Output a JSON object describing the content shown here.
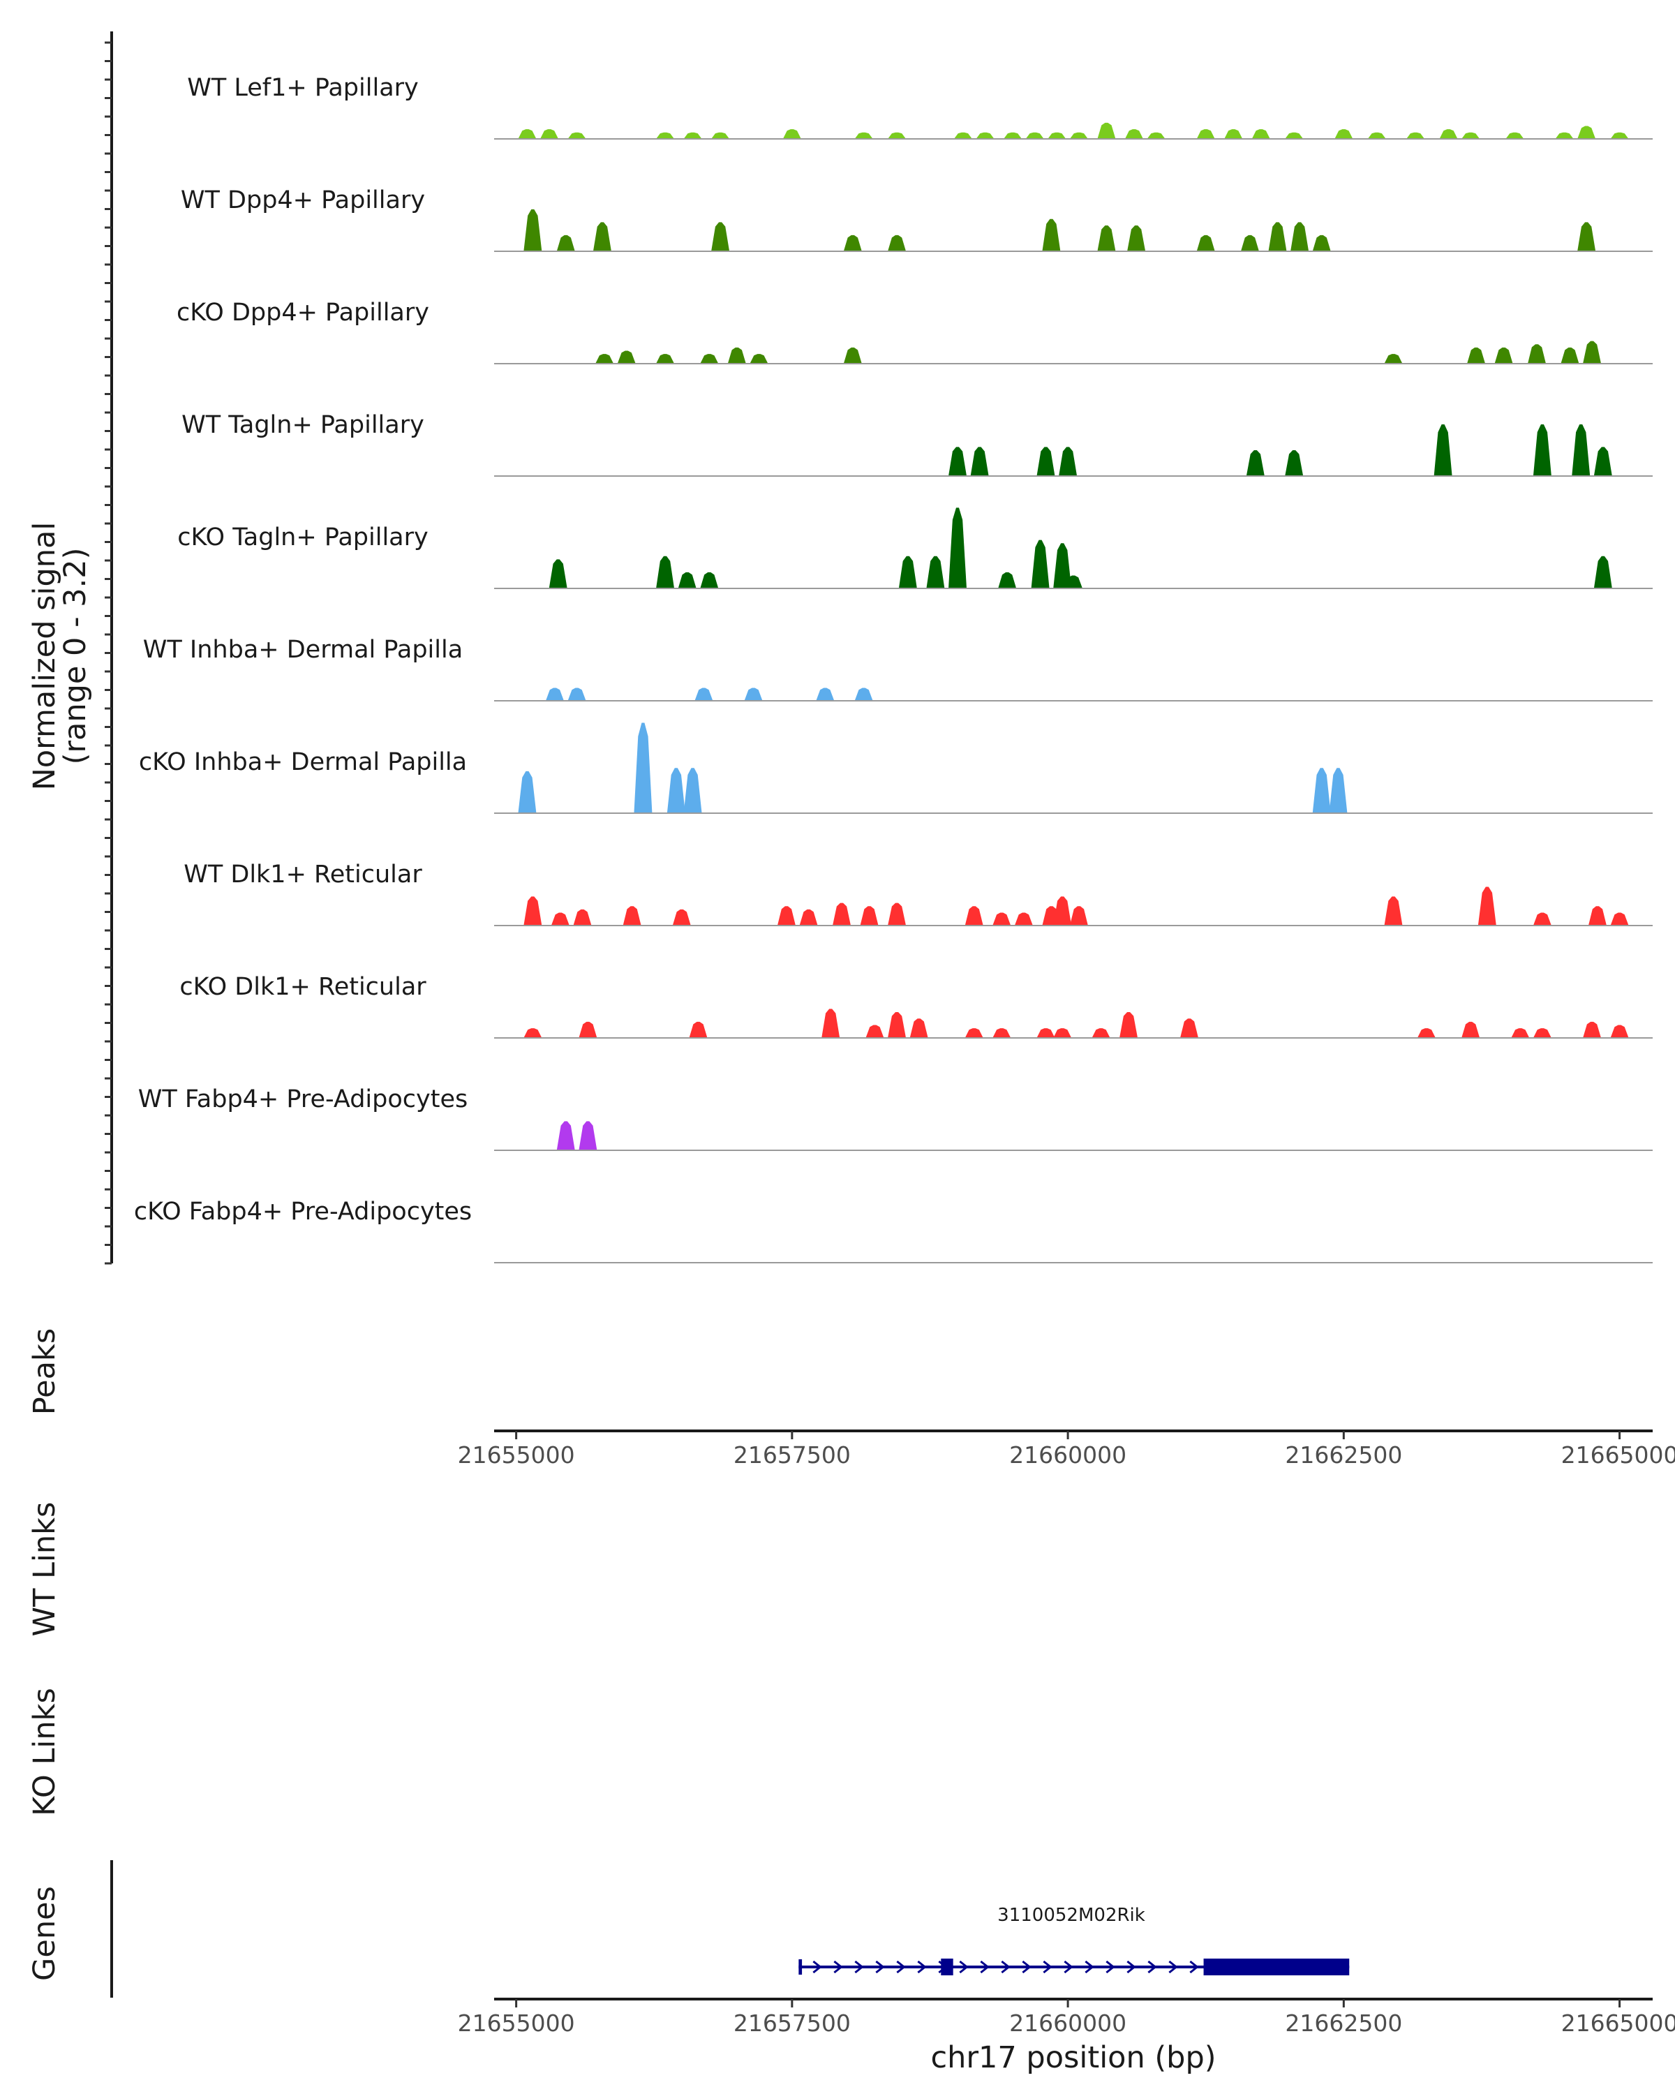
{
  "chart_data": {
    "type": "coverage",
    "chromosome": "chr17",
    "xlim": [
      21654800,
      21665300
    ],
    "signal_axis_label": "Normalized signal",
    "signal_axis_range": "(range 0 - 3.2)",
    "ylim": [
      0,
      3.2
    ],
    "colors": {
      "papillary_light": "#7ACC1E",
      "papillary_mid": "#3F8700",
      "papillary_dark": "#006400",
      "dermal_papilla": "#5DADEC",
      "reticular": "#FF3030",
      "adipocyte": "#B23AEE",
      "gene": "#00008B",
      "baseline": "#9a9a9a"
    },
    "tracks": [
      {
        "label": "WT Lef1+ Papillary",
        "color": "#7ACC1E",
        "peaks": [
          [
            21655100,
            0.3
          ],
          [
            21655300,
            0.3
          ],
          [
            21655550,
            0.2
          ],
          [
            21656350,
            0.2
          ],
          [
            21656600,
            0.2
          ],
          [
            21656850,
            0.2
          ],
          [
            21657500,
            0.3
          ],
          [
            21658150,
            0.2
          ],
          [
            21658450,
            0.2
          ],
          [
            21659050,
            0.2
          ],
          [
            21659250,
            0.2
          ],
          [
            21659500,
            0.2
          ],
          [
            21659700,
            0.2
          ],
          [
            21659900,
            0.2
          ],
          [
            21660100,
            0.2
          ],
          [
            21660350,
            0.5
          ],
          [
            21660600,
            0.3
          ],
          [
            21660800,
            0.2
          ],
          [
            21661250,
            0.3
          ],
          [
            21661500,
            0.3
          ],
          [
            21661750,
            0.3
          ],
          [
            21662050,
            0.2
          ],
          [
            21662500,
            0.3
          ],
          [
            21662800,
            0.2
          ],
          [
            21663150,
            0.2
          ],
          [
            21663450,
            0.3
          ],
          [
            21663650,
            0.2
          ],
          [
            21664050,
            0.2
          ],
          [
            21664500,
            0.2
          ],
          [
            21664700,
            0.4
          ],
          [
            21665000,
            0.2
          ]
        ]
      },
      {
        "label": "WT Dpp4+ Papillary",
        "color": "#3F8700",
        "peaks": [
          [
            21655150,
            1.3
          ],
          [
            21655450,
            0.5
          ],
          [
            21655780,
            0.9
          ],
          [
            21656850,
            0.9
          ],
          [
            21658050,
            0.5
          ],
          [
            21658450,
            0.5
          ],
          [
            21659850,
            1.0
          ],
          [
            21660350,
            0.8
          ],
          [
            21660620,
            0.8
          ],
          [
            21661250,
            0.5
          ],
          [
            21661650,
            0.5
          ],
          [
            21661900,
            0.9
          ],
          [
            21662100,
            0.9
          ],
          [
            21662300,
            0.5
          ],
          [
            21664700,
            0.9
          ]
        ]
      },
      {
        "label": "cKO Dpp4+ Papillary",
        "color": "#3F8700",
        "peaks": [
          [
            21655800,
            0.3
          ],
          [
            21656000,
            0.4
          ],
          [
            21656350,
            0.3
          ],
          [
            21656750,
            0.3
          ],
          [
            21657000,
            0.5
          ],
          [
            21657200,
            0.3
          ],
          [
            21658050,
            0.5
          ],
          [
            21662950,
            0.3
          ],
          [
            21663700,
            0.5
          ],
          [
            21663950,
            0.5
          ],
          [
            21664250,
            0.6
          ],
          [
            21664550,
            0.5
          ],
          [
            21664750,
            0.7
          ]
        ]
      },
      {
        "label": "WT Tagln+ Papillary",
        "color": "#006400",
        "peaks": [
          [
            21659000,
            0.9
          ],
          [
            21659200,
            0.9
          ],
          [
            21659800,
            0.9
          ],
          [
            21660000,
            0.9
          ],
          [
            21661700,
            0.8
          ],
          [
            21662050,
            0.8
          ],
          [
            21663400,
            1.6
          ],
          [
            21664300,
            1.6
          ],
          [
            21664650,
            1.6
          ],
          [
            21664850,
            0.9
          ]
        ]
      },
      {
        "label": "cKO Tagln+ Papillary",
        "color": "#006400",
        "peaks": [
          [
            21655380,
            0.9
          ],
          [
            21656350,
            1.0
          ],
          [
            21656550,
            0.5
          ],
          [
            21656750,
            0.5
          ],
          [
            21658550,
            1.0
          ],
          [
            21658800,
            1.0
          ],
          [
            21659000,
            2.5
          ],
          [
            21659450,
            0.5
          ],
          [
            21659750,
            1.5
          ],
          [
            21659950,
            1.4
          ],
          [
            21660050,
            0.4
          ],
          [
            21664850,
            1.0
          ]
        ]
      },
      {
        "label": "WT Inhba+ Dermal Papilla",
        "color": "#5DADEC",
        "peaks": [
          [
            21655350,
            0.4
          ],
          [
            21655550,
            0.4
          ],
          [
            21656700,
            0.4
          ],
          [
            21657150,
            0.4
          ],
          [
            21657800,
            0.4
          ],
          [
            21658150,
            0.4
          ]
        ]
      },
      {
        "label": "cKO Inhba+ Dermal Papilla",
        "color": "#5DADEC",
        "peaks": [
          [
            21655100,
            1.3
          ],
          [
            21656150,
            2.8
          ],
          [
            21656450,
            1.4
          ],
          [
            21656600,
            1.4
          ],
          [
            21662300,
            1.4
          ],
          [
            21662450,
            1.4
          ]
        ]
      },
      {
        "label": "WT Dlk1+ Reticular",
        "color": "#FF3030",
        "peaks": [
          [
            21655150,
            0.9
          ],
          [
            21655400,
            0.4
          ],
          [
            21655600,
            0.5
          ],
          [
            21656050,
            0.6
          ],
          [
            21656500,
            0.5
          ],
          [
            21657450,
            0.6
          ],
          [
            21657650,
            0.5
          ],
          [
            21657950,
            0.7
          ],
          [
            21658200,
            0.6
          ],
          [
            21658450,
            0.7
          ],
          [
            21659150,
            0.6
          ],
          [
            21659400,
            0.4
          ],
          [
            21659600,
            0.4
          ],
          [
            21659850,
            0.6
          ],
          [
            21659950,
            0.9
          ],
          [
            21660100,
            0.6
          ],
          [
            21662950,
            0.9
          ],
          [
            21663800,
            1.2
          ],
          [
            21664300,
            0.4
          ],
          [
            21664800,
            0.6
          ],
          [
            21665000,
            0.4
          ]
        ]
      },
      {
        "label": "cKO Dlk1+ Reticular",
        "color": "#FF3030",
        "peaks": [
          [
            21655150,
            0.3
          ],
          [
            21655650,
            0.5
          ],
          [
            21656650,
            0.5
          ],
          [
            21657850,
            0.9
          ],
          [
            21658250,
            0.4
          ],
          [
            21658450,
            0.8
          ],
          [
            21658650,
            0.6
          ],
          [
            21659150,
            0.3
          ],
          [
            21659400,
            0.3
          ],
          [
            21659800,
            0.3
          ],
          [
            21659950,
            0.3
          ],
          [
            21660300,
            0.3
          ],
          [
            21660550,
            0.8
          ],
          [
            21661100,
            0.6
          ],
          [
            21663250,
            0.3
          ],
          [
            21663650,
            0.5
          ],
          [
            21664100,
            0.3
          ],
          [
            21664300,
            0.3
          ],
          [
            21664750,
            0.5
          ],
          [
            21665000,
            0.4
          ]
        ]
      },
      {
        "label": "WT Fabp4+ Pre-Adipocytes",
        "color": "#B23AEE",
        "peaks": [
          [
            21655450,
            0.9
          ],
          [
            21655650,
            0.9
          ]
        ]
      },
      {
        "label": "cKO Fabp4+ Pre-Adipocytes",
        "color": "#B23AEE",
        "peaks": []
      }
    ],
    "panels": {
      "peaks": "Peaks",
      "wt_links": "WT Links",
      "ko_links": "KO Links",
      "genes": "Genes"
    },
    "x_ticks": [
      21655000,
      21657500,
      21660000,
      21662500,
      21665000
    ],
    "x_tick_labels": [
      "21655000",
      "21657500",
      "21660000",
      "21662500",
      "21665000"
    ],
    "xlabel": "chr17 position (bp)",
    "gene": {
      "name": "3110052M02Rik",
      "start": 21657560,
      "end": 21662550,
      "strand": "+",
      "exons": [
        [
          21657560,
          21657590
        ],
        [
          21658850,
          21658960
        ],
        [
          21661230,
          21662550
        ]
      ]
    }
  }
}
